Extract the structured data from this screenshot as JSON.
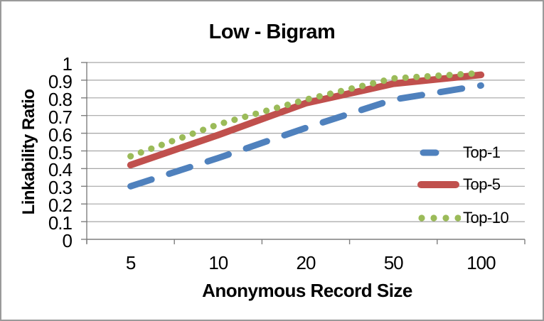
{
  "chart_data": {
    "type": "line",
    "title": "Low - Bigram",
    "xlabel": "Anonymous Record Size",
    "ylabel": "Linkability Ratio",
    "categories": [
      "5",
      "10",
      "20",
      "50",
      "100"
    ],
    "series": [
      {
        "name": "Top-1",
        "values": [
          0.3,
          0.46,
          0.63,
          0.79,
          0.87
        ],
        "color": "#4F81BD",
        "line_style": "dash"
      },
      {
        "name": "Top-5",
        "values": [
          0.42,
          0.59,
          0.77,
          0.88,
          0.93
        ],
        "color": "#C0504D",
        "line_style": "solid"
      },
      {
        "name": "Top-10",
        "values": [
          0.47,
          0.65,
          0.79,
          0.91,
          0.94
        ],
        "color": "#9BBB59",
        "line_style": "dots"
      }
    ],
    "ylim": [
      0,
      1
    ],
    "ytick_labels": [
      "0",
      "0.1",
      "0.2",
      "0.3",
      "0.4",
      "0.5",
      "0.6",
      "0.7",
      "0.8",
      "0.9",
      "1"
    ],
    "grid": true,
    "legend_position": "inside-right"
  },
  "palette": {
    "background": "#ffffff",
    "border": "#9a9a9a",
    "gridline": "#a6a6a6",
    "axis": "#7f7f7f",
    "text": "#000000"
  }
}
